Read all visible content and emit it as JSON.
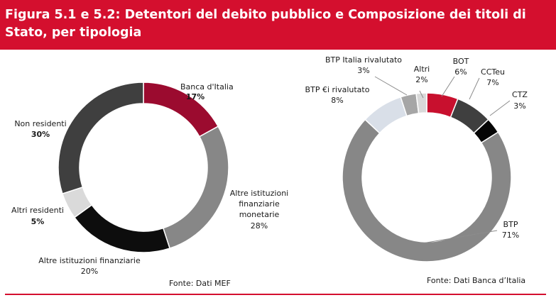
{
  "header": {
    "title": "Figura 5.1 e 5.2: Detentori del debito pubblico e Composizione dei titoli di Stato, per tipologia",
    "background": "#d40f2e"
  },
  "chart_data": [
    {
      "type": "pie",
      "donut": true,
      "title": "",
      "categories": [
        "Banca d'Italia",
        "Altre istituzioni finanziarie monetarie",
        "Altre istituzioni finanziarie",
        "Altri residenti",
        "Non residenti"
      ],
      "values": [
        17,
        28,
        20,
        5,
        30
      ],
      "value_labels": [
        "17%",
        "28%",
        "20%",
        "5%",
        "30%"
      ],
      "colors": [
        "#9b0b2f",
        "#878787",
        "#0d0d0d",
        "#dadada",
        "#3f3f3f"
      ],
      "source": "Fonte: Dati MEF"
    },
    {
      "type": "pie",
      "donut": true,
      "title": "",
      "categories": [
        "BOT",
        "CCTeu",
        "CTZ",
        "BTP",
        "BTP €i rivalutato",
        "BTP Italia rivalutato",
        "Altri"
      ],
      "values": [
        6,
        7,
        3,
        71,
        8,
        3,
        2
      ],
      "value_labels": [
        "6%",
        "7%",
        "3%",
        "71%",
        "8%",
        "3%",
        "2%"
      ],
      "colors": [
        "#c8102e",
        "#3f3f3f",
        "#050505",
        "#878787",
        "#d9dfe8",
        "#a6a6a6",
        "#d9d9d9"
      ],
      "source": "Fonte: Dati Banca d’Italia"
    }
  ],
  "footer": {
    "rule_color": "#d40f2e"
  }
}
